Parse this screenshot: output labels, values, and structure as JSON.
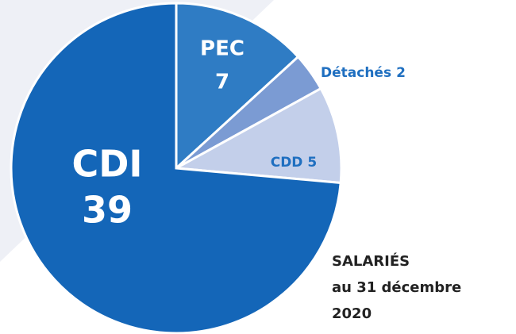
{
  "chart_data": {
    "type": "pie",
    "categories": [
      "PEC",
      "Détachés",
      "CDD",
      "CDI"
    ],
    "values": [
      7,
      2,
      5,
      39
    ],
    "colors": [
      "#2f7cc4",
      "#7b9bd3",
      "#c3cfea",
      "#1466b8"
    ],
    "title_lines": [
      "SALARIÉS",
      "au 31 décembre",
      "2020"
    ]
  }
}
